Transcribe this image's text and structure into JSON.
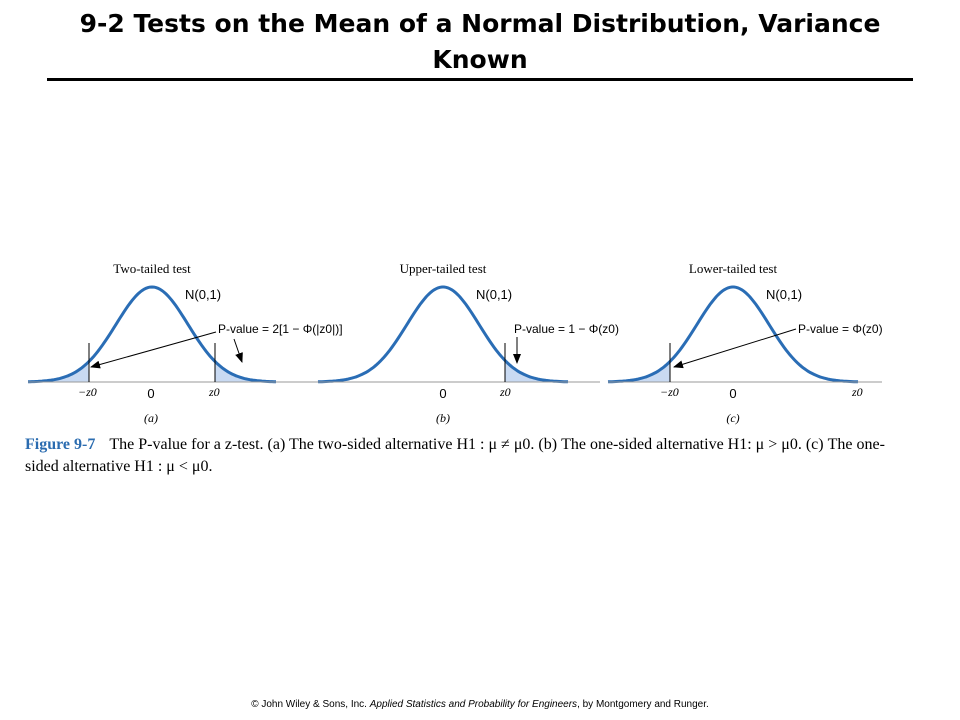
{
  "title": "9-2 Tests on the Mean of a Normal Distribution, Variance Known",
  "figure": {
    "panels": [
      {
        "title": "Two-tailed test",
        "dist_label": "N(0,1)",
        "pvalue_label": "P-value = 2[1 − Φ(|z0|)]",
        "tick_labels": [
          "−z0",
          "0",
          "z0"
        ],
        "sublabel": "(a)"
      },
      {
        "title": "Upper-tailed test",
        "dist_label": "N(0,1)",
        "pvalue_label": "P-value = 1 − Φ(z0)",
        "tick_labels": [
          "0",
          "z0"
        ],
        "sublabel": "(b)"
      },
      {
        "title": "Lower-tailed test",
        "dist_label": "N(0,1)",
        "pvalue_label": "P-value = Φ(z0)",
        "tick_labels": [
          "−z0",
          "0",
          "z0"
        ],
        "sublabel": "(c)"
      }
    ],
    "curve_color": "#2a6db5",
    "shade_color": "#c9daf2"
  },
  "caption": {
    "label": "Figure 9-7",
    "text": "The P-value for a z-test. (a) The two-sided alternative H1 : μ ≠ μ0. (b) The one-sided alternative H1: μ > μ0. (c) The one-sided alternative H1 : μ < μ0."
  },
  "footer": {
    "copyright": "© John Wiley & Sons, Inc.",
    "book_title": "Applied Statistics and Probability for Engineers",
    "authors": ", by Montgomery and Runger."
  }
}
